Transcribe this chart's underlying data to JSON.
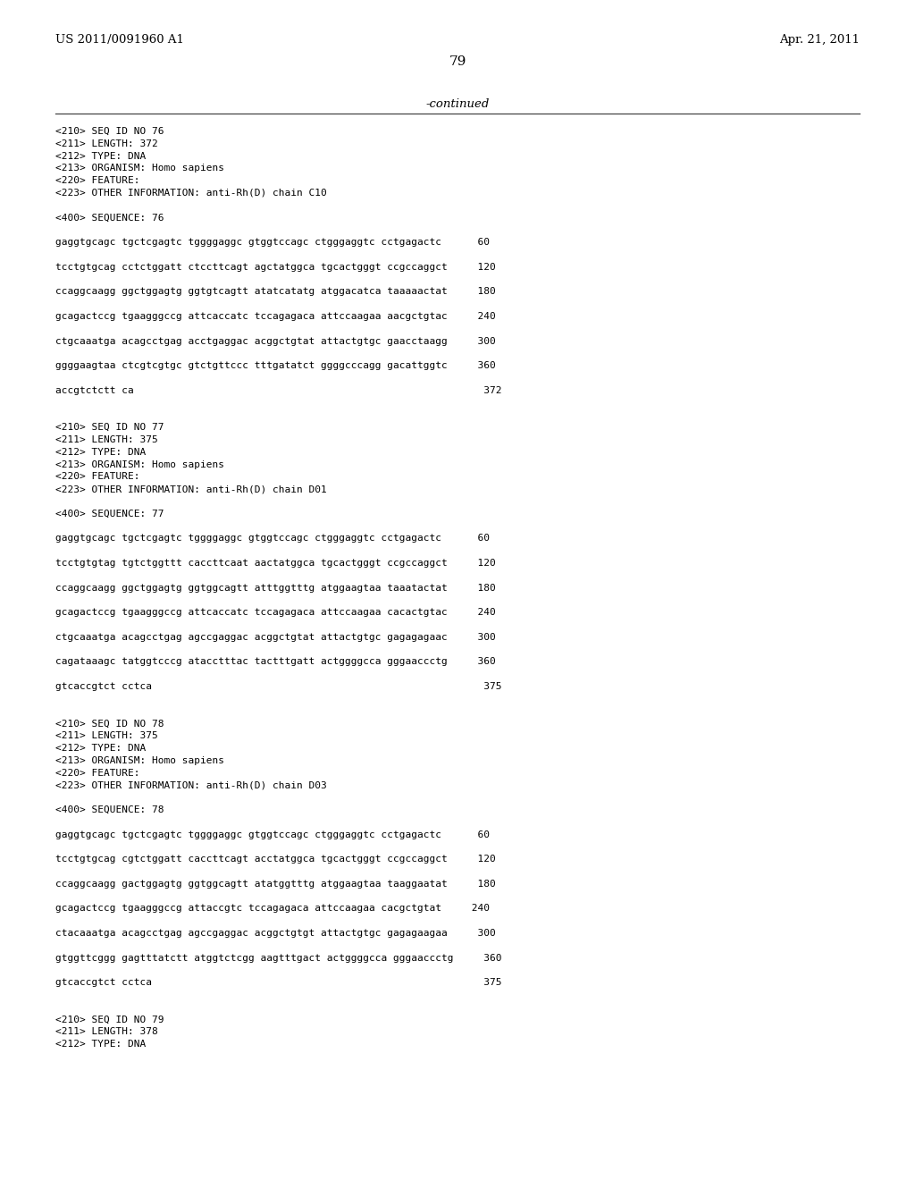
{
  "background_color": "#ffffff",
  "header_left": "US 2011/0091960 A1",
  "header_right": "Apr. 21, 2011",
  "page_number": "79",
  "continued_label": "-continued",
  "content": [
    "<210> SEQ ID NO 76",
    "<211> LENGTH: 372",
    "<212> TYPE: DNA",
    "<213> ORGANISM: Homo sapiens",
    "<220> FEATURE:",
    "<223> OTHER INFORMATION: anti-Rh(D) chain C10",
    "",
    "<400> SEQUENCE: 76",
    "",
    "gaggtgcagc tgctcgagtc tggggaggc gtggtccagc ctgggaggtc cctgagactc      60",
    "",
    "tcctgtgcag cctctggatt ctccttcagt agctatggca tgcactgggt ccgccaggct     120",
    "",
    "ccaggcaagg ggctggagtg ggtgtcagtt atatcatatg atggacatca taaaaactat     180",
    "",
    "gcagactccg tgaagggccg attcaccatc tccagagaca attccaagaa aacgctgtac     240",
    "",
    "ctgcaaatga acagcctgag acctgaggac acggctgtat attactgtgc gaacctaagg     300",
    "",
    "ggggaagtaa ctcgtcgtgc gtctgttccc tttgatatct ggggcccagg gacattggtc     360",
    "",
    "accgtctctt ca                                                          372",
    "",
    "",
    "<210> SEQ ID NO 77",
    "<211> LENGTH: 375",
    "<212> TYPE: DNA",
    "<213> ORGANISM: Homo sapiens",
    "<220> FEATURE:",
    "<223> OTHER INFORMATION: anti-Rh(D) chain D01",
    "",
    "<400> SEQUENCE: 77",
    "",
    "gaggtgcagc tgctcgagtc tggggaggc gtggtccagc ctgggaggtc cctgagactc      60",
    "",
    "tcctgtgtag tgtctggttt caccttcaat aactatggca tgcactgggt ccgccaggct     120",
    "",
    "ccaggcaagg ggctggagtg ggtggcagtt atttggtttg atggaagtaa taaatactat     180",
    "",
    "gcagactccg tgaagggccg attcaccatc tccagagaca attccaagaa cacactgtac     240",
    "",
    "ctgcaaatga acagcctgag agccgaggac acggctgtat attactgtgc gagagagaac     300",
    "",
    "cagataaagc tatggtcccg atacctttac tactttgatt actggggcca gggaaccctg     360",
    "",
    "gtcaccgtct cctca                                                       375",
    "",
    "",
    "<210> SEQ ID NO 78",
    "<211> LENGTH: 375",
    "<212> TYPE: DNA",
    "<213> ORGANISM: Homo sapiens",
    "<220> FEATURE:",
    "<223> OTHER INFORMATION: anti-Rh(D) chain D03",
    "",
    "<400> SEQUENCE: 78",
    "",
    "gaggtgcagc tgctcgagtc tggggaggc gtggtccagc ctgggaggtc cctgagactc      60",
    "",
    "tcctgtgcag cgtctggatt caccttcagt acctatggca tgcactgggt ccgccaggct     120",
    "",
    "ccaggcaagg gactggagtg ggtggcagtt atatggtttg atggaagtaa taaggaatat     180",
    "",
    "gcagactccg tgaagggccg attaccgtc tccagagaca attccaagaa cacgctgtat     240",
    "",
    "ctacaaatga acagcctgag agccgaggac acggctgtgt attactgtgc gagagaagaa     300",
    "",
    "gtggttcggg gagtttatctt atggtctcgg aagtttgact actggggcca gggaaccctg     360",
    "",
    "gtcaccgtct cctca                                                       375",
    "",
    "",
    "<210> SEQ ID NO 79",
    "<211> LENGTH: 378",
    "<212> TYPE: DNA"
  ]
}
